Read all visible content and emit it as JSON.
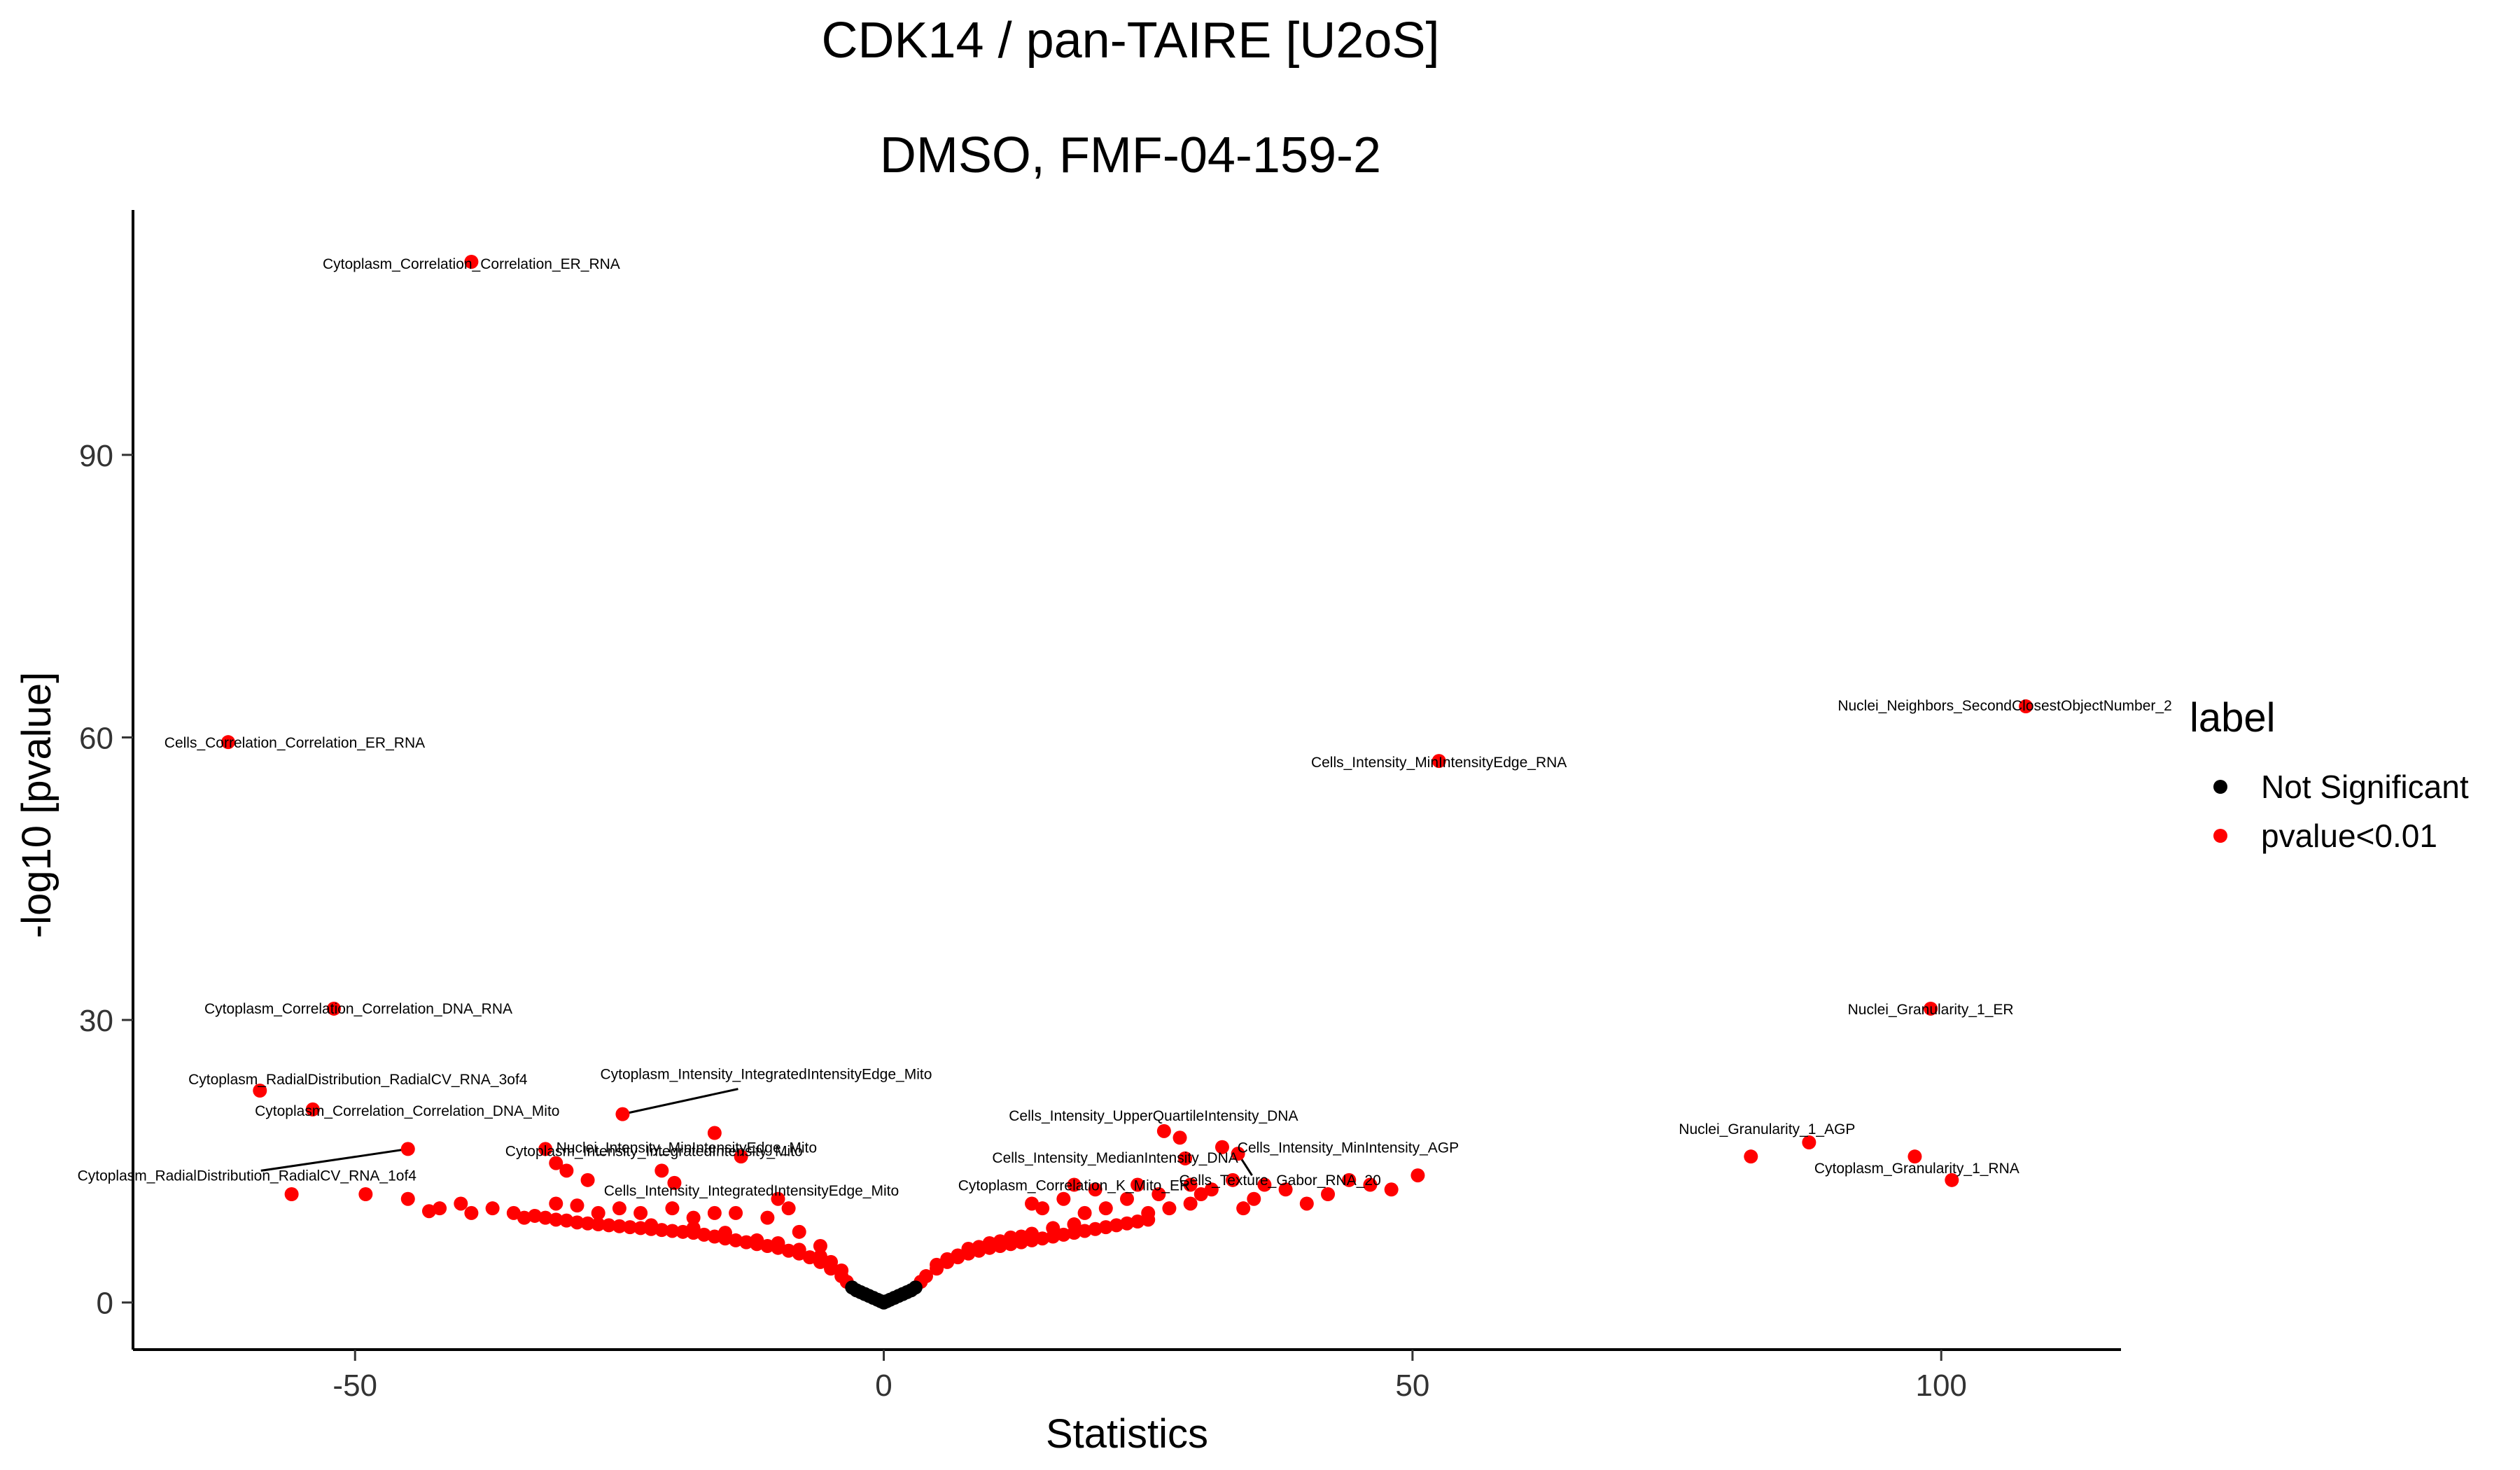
{
  "chart_data": {
    "type": "scatter",
    "title": "CDK14 / pan-TAIRE [U2oS]",
    "subtitle": "DMSO, FMF-04-159-2",
    "xlabel": "Statistics",
    "ylabel": "-log10 [pvalue]",
    "xlim": [
      -71,
      117
    ],
    "ylim": [
      -5,
      116
    ],
    "x_ticks": [
      -50,
      0,
      50,
      100
    ],
    "y_ticks": [
      0,
      30,
      60,
      90
    ],
    "grid": false,
    "legend": {
      "title": "label",
      "position": "right",
      "entries": [
        {
          "name": "Not Significant",
          "color": "#000000"
        },
        {
          "name": "pvalue<0.01",
          "color": "#ff0000"
        }
      ]
    },
    "series": [
      {
        "name": "Not Significant",
        "color": "#000000",
        "points": [
          [
            -3.0,
            1.6
          ],
          [
            -2.6,
            1.3
          ],
          [
            -2.2,
            1.1
          ],
          [
            -1.8,
            0.9
          ],
          [
            -1.4,
            0.7
          ],
          [
            -1.0,
            0.5
          ],
          [
            -0.6,
            0.3
          ],
          [
            -0.3,
            0.15
          ],
          [
            0.0,
            0.0
          ],
          [
            0.3,
            0.15
          ],
          [
            0.6,
            0.3
          ],
          [
            1.0,
            0.5
          ],
          [
            1.4,
            0.7
          ],
          [
            1.8,
            0.9
          ],
          [
            2.2,
            1.1
          ],
          [
            2.6,
            1.3
          ],
          [
            3.0,
            1.6
          ]
        ]
      },
      {
        "name": "pvalue<0.01",
        "color": "#ff0000",
        "points": [
          [
            -39,
            110.5
          ],
          [
            -62,
            59.5
          ],
          [
            -52,
            31.2
          ],
          [
            -59,
            22.5
          ],
          [
            -54,
            20.5
          ],
          [
            -45,
            16.3
          ],
          [
            -24.7,
            20
          ],
          [
            -32,
            16.3
          ],
          [
            -16,
            18
          ],
          [
            -13.5,
            15.5
          ],
          [
            -31,
            14.8
          ],
          [
            -30,
            14
          ],
          [
            -21,
            14
          ],
          [
            -28,
            13
          ],
          [
            -19.8,
            12.7
          ],
          [
            -10,
            11
          ],
          [
            -9,
            10
          ],
          [
            -56,
            11.5
          ],
          [
            -49,
            11.5
          ],
          [
            -45,
            11
          ],
          [
            -43,
            9.7
          ],
          [
            -42,
            10
          ],
          [
            -40,
            10.5
          ],
          [
            -39,
            9.5
          ],
          [
            -37,
            10
          ],
          [
            -35,
            9.5
          ],
          [
            -34,
            9
          ],
          [
            -31,
            10.5
          ],
          [
            -29,
            10.3
          ],
          [
            -27,
            9.5
          ],
          [
            -25,
            10
          ],
          [
            -23,
            9.5
          ],
          [
            -20,
            10
          ],
          [
            -18,
            9
          ],
          [
            -16,
            9.5
          ],
          [
            -14,
            9.5
          ],
          [
            -11,
            9
          ],
          [
            -8,
            7.5
          ],
          [
            -6,
            6
          ],
          [
            -33,
            9.2
          ],
          [
            -32,
            9.0
          ],
          [
            -31,
            8.8
          ],
          [
            -30,
            8.7
          ],
          [
            -29,
            8.5
          ],
          [
            -28,
            8.4
          ],
          [
            -27,
            8.3
          ],
          [
            -26,
            8.2
          ],
          [
            -25,
            8.1
          ],
          [
            -24,
            8.0
          ],
          [
            -23,
            7.9
          ],
          [
            -22,
            7.8
          ],
          [
            -21,
            7.7
          ],
          [
            -20,
            7.6
          ],
          [
            -19,
            7.5
          ],
          [
            -18,
            7.4
          ],
          [
            -17,
            7.2
          ],
          [
            -16,
            7.0
          ],
          [
            -15,
            6.8
          ],
          [
            -14,
            6.6
          ],
          [
            -13,
            6.4
          ],
          [
            -12,
            6.2
          ],
          [
            -11,
            6.0
          ],
          [
            -10,
            5.8
          ],
          [
            -9,
            5.5
          ],
          [
            -8,
            5.2
          ],
          [
            -7,
            4.8
          ],
          [
            -6,
            4.3
          ],
          [
            -5,
            3.6
          ],
          [
            -4,
            2.8
          ],
          [
            -3.5,
            2.2
          ],
          [
            -12,
            6.6
          ],
          [
            -10,
            6.3
          ],
          [
            -8,
            5.6
          ],
          [
            -6,
            4.9
          ],
          [
            -5,
            4.3
          ],
          [
            -4,
            3.4
          ],
          [
            -22,
            8.2
          ],
          [
            -18,
            7.9
          ],
          [
            -15,
            7.4
          ],
          [
            3.5,
            2.2
          ],
          [
            4,
            2.8
          ],
          [
            5,
            3.6
          ],
          [
            6,
            4.3
          ],
          [
            7,
            4.8
          ],
          [
            8,
            5.2
          ],
          [
            9,
            5.5
          ],
          [
            10,
            5.8
          ],
          [
            11,
            6.0
          ],
          [
            12,
            6.2
          ],
          [
            13,
            6.4
          ],
          [
            14,
            6.6
          ],
          [
            15,
            6.8
          ],
          [
            16,
            7.0
          ],
          [
            17,
            7.2
          ],
          [
            18,
            7.4
          ],
          [
            19,
            7.6
          ],
          [
            20,
            7.8
          ],
          [
            21,
            8.0
          ],
          [
            22,
            8.2
          ],
          [
            23,
            8.4
          ],
          [
            24,
            8.6
          ],
          [
            25,
            8.8
          ],
          [
            5,
            4.0
          ],
          [
            7,
            5.0
          ],
          [
            9,
            5.9
          ],
          [
            11,
            6.5
          ],
          [
            13,
            7.0
          ],
          [
            6,
            4.6
          ],
          [
            8,
            5.7
          ],
          [
            10,
            6.3
          ],
          [
            12,
            6.9
          ],
          [
            14,
            7.3
          ],
          [
            16,
            7.9
          ],
          [
            18,
            8.3
          ],
          [
            26.5,
            18.2
          ],
          [
            28,
            17.5
          ],
          [
            32,
            16.5
          ],
          [
            33.5,
            15.8
          ],
          [
            28.5,
            15.3
          ],
          [
            18,
            12.5
          ],
          [
            20,
            12
          ],
          [
            24,
            12.5
          ],
          [
            26,
            11.5
          ],
          [
            29,
            12.5
          ],
          [
            30,
            11.5
          ],
          [
            31,
            12
          ],
          [
            35,
            11
          ],
          [
            36,
            12.5
          ],
          [
            33,
            13
          ],
          [
            38,
            12
          ],
          [
            40,
            10.5
          ],
          [
            42,
            11.5
          ],
          [
            44,
            13
          ],
          [
            46,
            12.5
          ],
          [
            48,
            12
          ],
          [
            50.5,
            13.5
          ],
          [
            52.5,
            57.5
          ],
          [
            82,
            15.5
          ],
          [
            87.5,
            17
          ],
          [
            97.5,
            15.5
          ],
          [
            101,
            13
          ],
          [
            99,
            31.2
          ],
          [
            108,
            63.3
          ],
          [
            14,
            10.5
          ],
          [
            17,
            11
          ],
          [
            21,
            10
          ],
          [
            23,
            11
          ],
          [
            25,
            9.5
          ],
          [
            27,
            10
          ],
          [
            29,
            10.5
          ],
          [
            34,
            10
          ],
          [
            15,
            10
          ],
          [
            19,
            9.5
          ]
        ]
      }
    ],
    "annotations": [
      {
        "text": "Cytoplasm_Correlation_Correlation_ER_RNA",
        "x": -39,
        "y": 110.5
      },
      {
        "text": "Cells_Correlation_Correlation_ER_RNA",
        "x": -62,
        "y": 59.5
      },
      {
        "text": "Cytoplasm_Correlation_Correlation_DNA_RNA",
        "x": -52,
        "y": 31.2
      },
      {
        "text": "Cytoplasm_RadialDistribution_RadialCV_RNA_3of4",
        "x": -59,
        "y": 22.5
      },
      {
        "text": "Cytoplasm_Correlation_Correlation_DNA_Mito",
        "x": -54,
        "y": 20.5
      },
      {
        "text": "Cytoplasm_RadialDistribution_RadialCV_RNA_1of4",
        "x": -45,
        "y": 16.3
      },
      {
        "text": "Cytoplasm_Intensity_IntegratedIntensityEdge_Mito",
        "x": -24.7,
        "y": 20
      },
      {
        "text": "Nuclei_Intensity_MinIntensityEdge_Mito",
        "x": -16,
        "y": 18
      },
      {
        "text": "Cytoplasm_Intensity_IntegratedIntensity_Mito",
        "x": -31,
        "y": 14.8
      },
      {
        "text": "Cells_Intensity_IntegratedIntensityEdge_Mito",
        "x": -19.8,
        "y": 12.7
      },
      {
        "text": "Cells_Intensity_UpperQuartileIntensity_DNA",
        "x": 26.5,
        "y": 18.2
      },
      {
        "text": "Cells_Intensity_MedianIntensity_DNA",
        "x": 28.5,
        "y": 15.3
      },
      {
        "text": "Cytoplasm_Correlation_K_Mito_ER",
        "x": 18,
        "y": 12.5
      },
      {
        "text": "Cells_Intensity_MinIntensity_AGP",
        "x": 32,
        "y": 16.5
      },
      {
        "text": "Cells_Texture_Gabor_RNA_20",
        "x": 33.5,
        "y": 15.8
      },
      {
        "text": "Cells_Intensity_MinIntensityEdge_RNA",
        "x": 52.5,
        "y": 57.5
      },
      {
        "text": "Nuclei_Neighbors_SecondClosestObjectNumber_2",
        "x": 108,
        "y": 63.3
      },
      {
        "text": "Nuclei_Granularity_1_ER",
        "x": 99,
        "y": 31.2
      },
      {
        "text": "Nuclei_Granularity_1_AGP",
        "x": 87.5,
        "y": 17
      },
      {
        "text": "Cytoplasm_Granularity_1_RNA",
        "x": 101,
        "y": 13
      }
    ]
  }
}
